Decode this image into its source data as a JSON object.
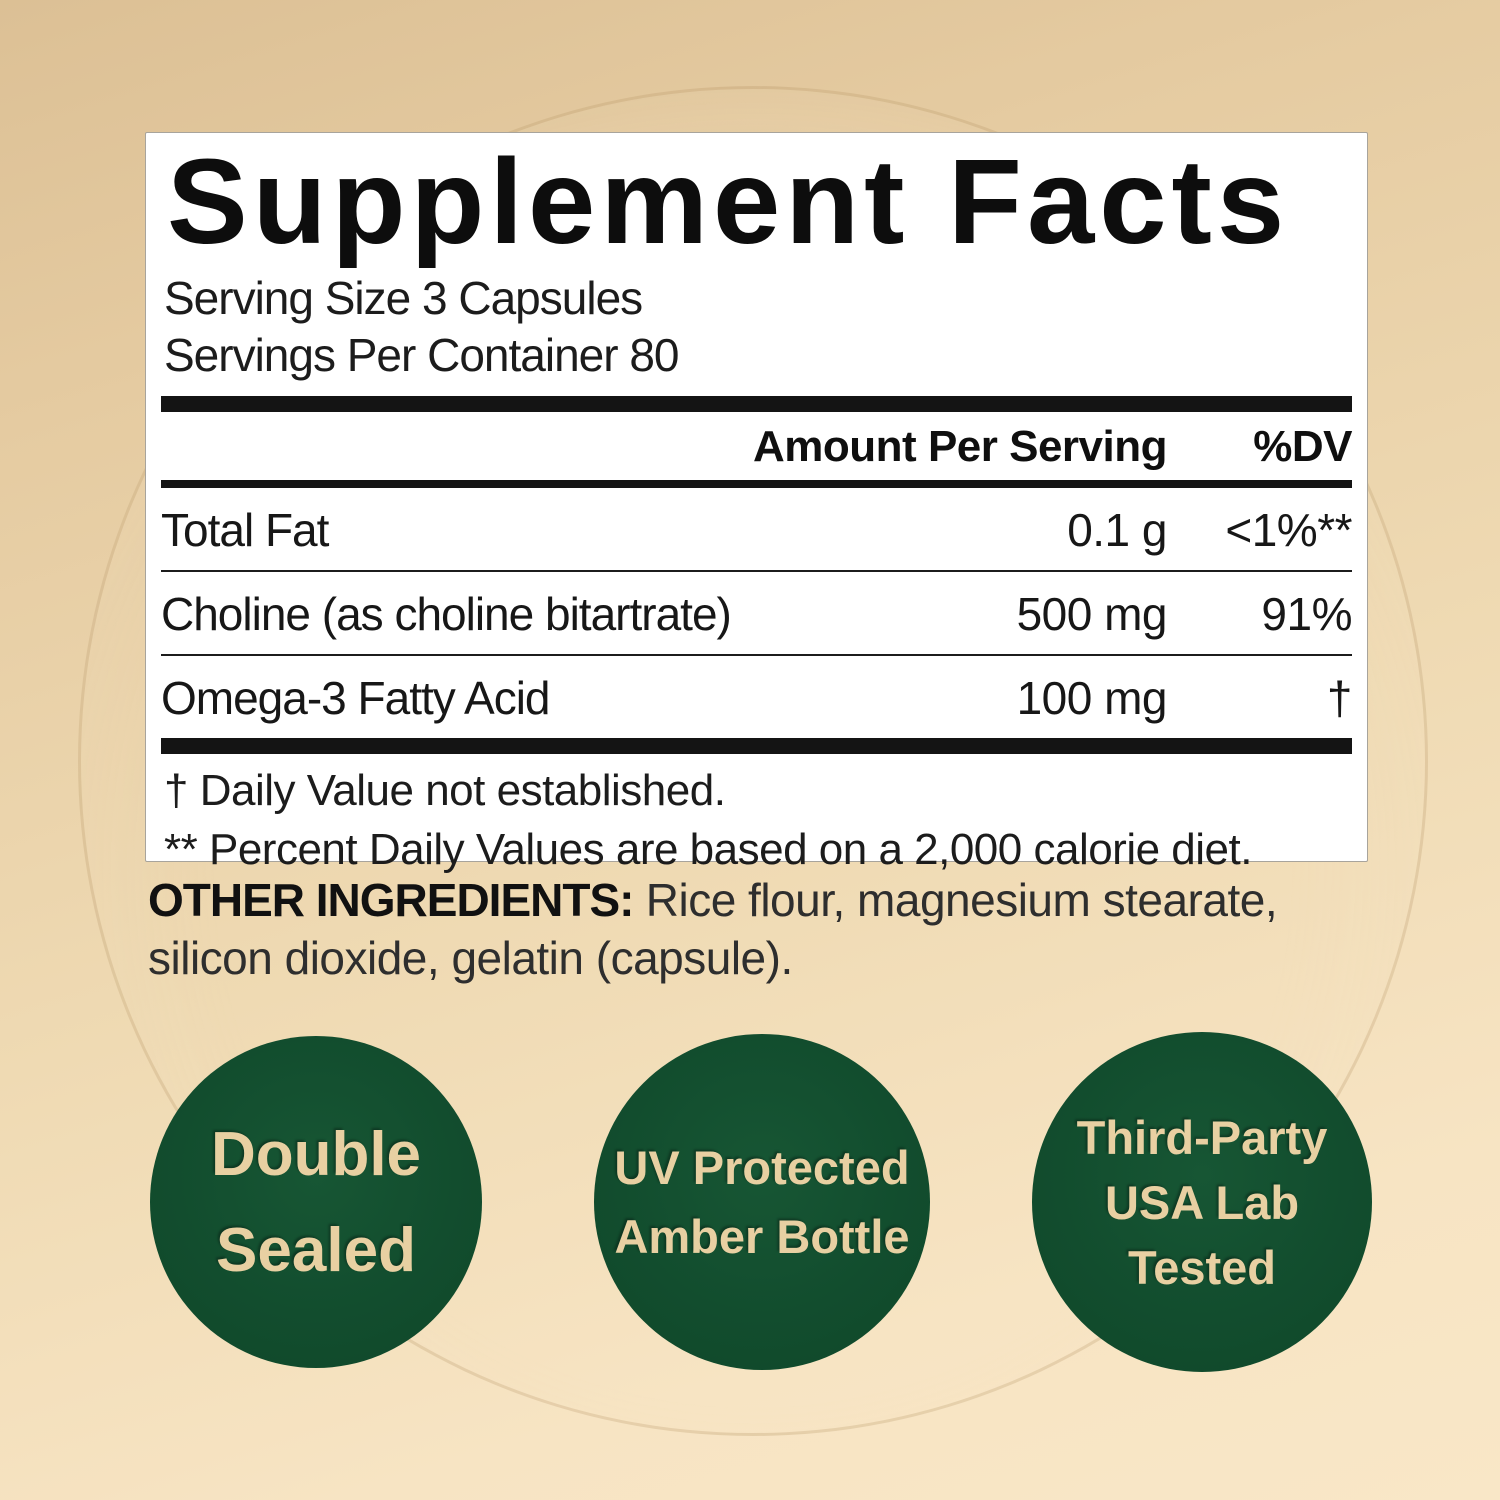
{
  "panel": {
    "title": "Supplement Facts",
    "serving_size": "Serving Size 3 Capsules",
    "servings_per_container": "Servings Per Container 80",
    "columns": {
      "amount": "Amount Per Serving",
      "dv": "%DV"
    },
    "rows": [
      {
        "name": "Total Fat",
        "amount": "0.1 g",
        "dv": "<1%**"
      },
      {
        "name": "Choline (as choline bitartrate)",
        "amount": "500 mg",
        "dv": "91%"
      },
      {
        "name": "Omega-3 Fatty Acid",
        "amount": "100 mg",
        "dv": "†"
      }
    ],
    "footnotes": [
      "† Daily Value not established.",
      "** Percent Daily Values are based on a 2,000 calorie diet."
    ]
  },
  "other_ingredients": {
    "label": "OTHER INGREDIENTS:",
    "text": " Rice flour, magnesium stearate, silicon dioxide, gelatin (capsule)."
  },
  "badges": [
    {
      "lines": [
        "Double",
        "Sealed"
      ]
    },
    {
      "lines": [
        "UV Protected",
        "Amber Bottle"
      ]
    },
    {
      "lines": [
        "Third-Party",
        "USA Lab",
        "Tested"
      ]
    }
  ],
  "colors": {
    "background_top": "#dcc095",
    "background_bottom": "#f9e7c7",
    "panel_bg": "#ffffff",
    "panel_border": "#a8a49c",
    "text_black": "#151515",
    "badge_green": "#124d2e",
    "badge_text": "#e8d0a2"
  }
}
